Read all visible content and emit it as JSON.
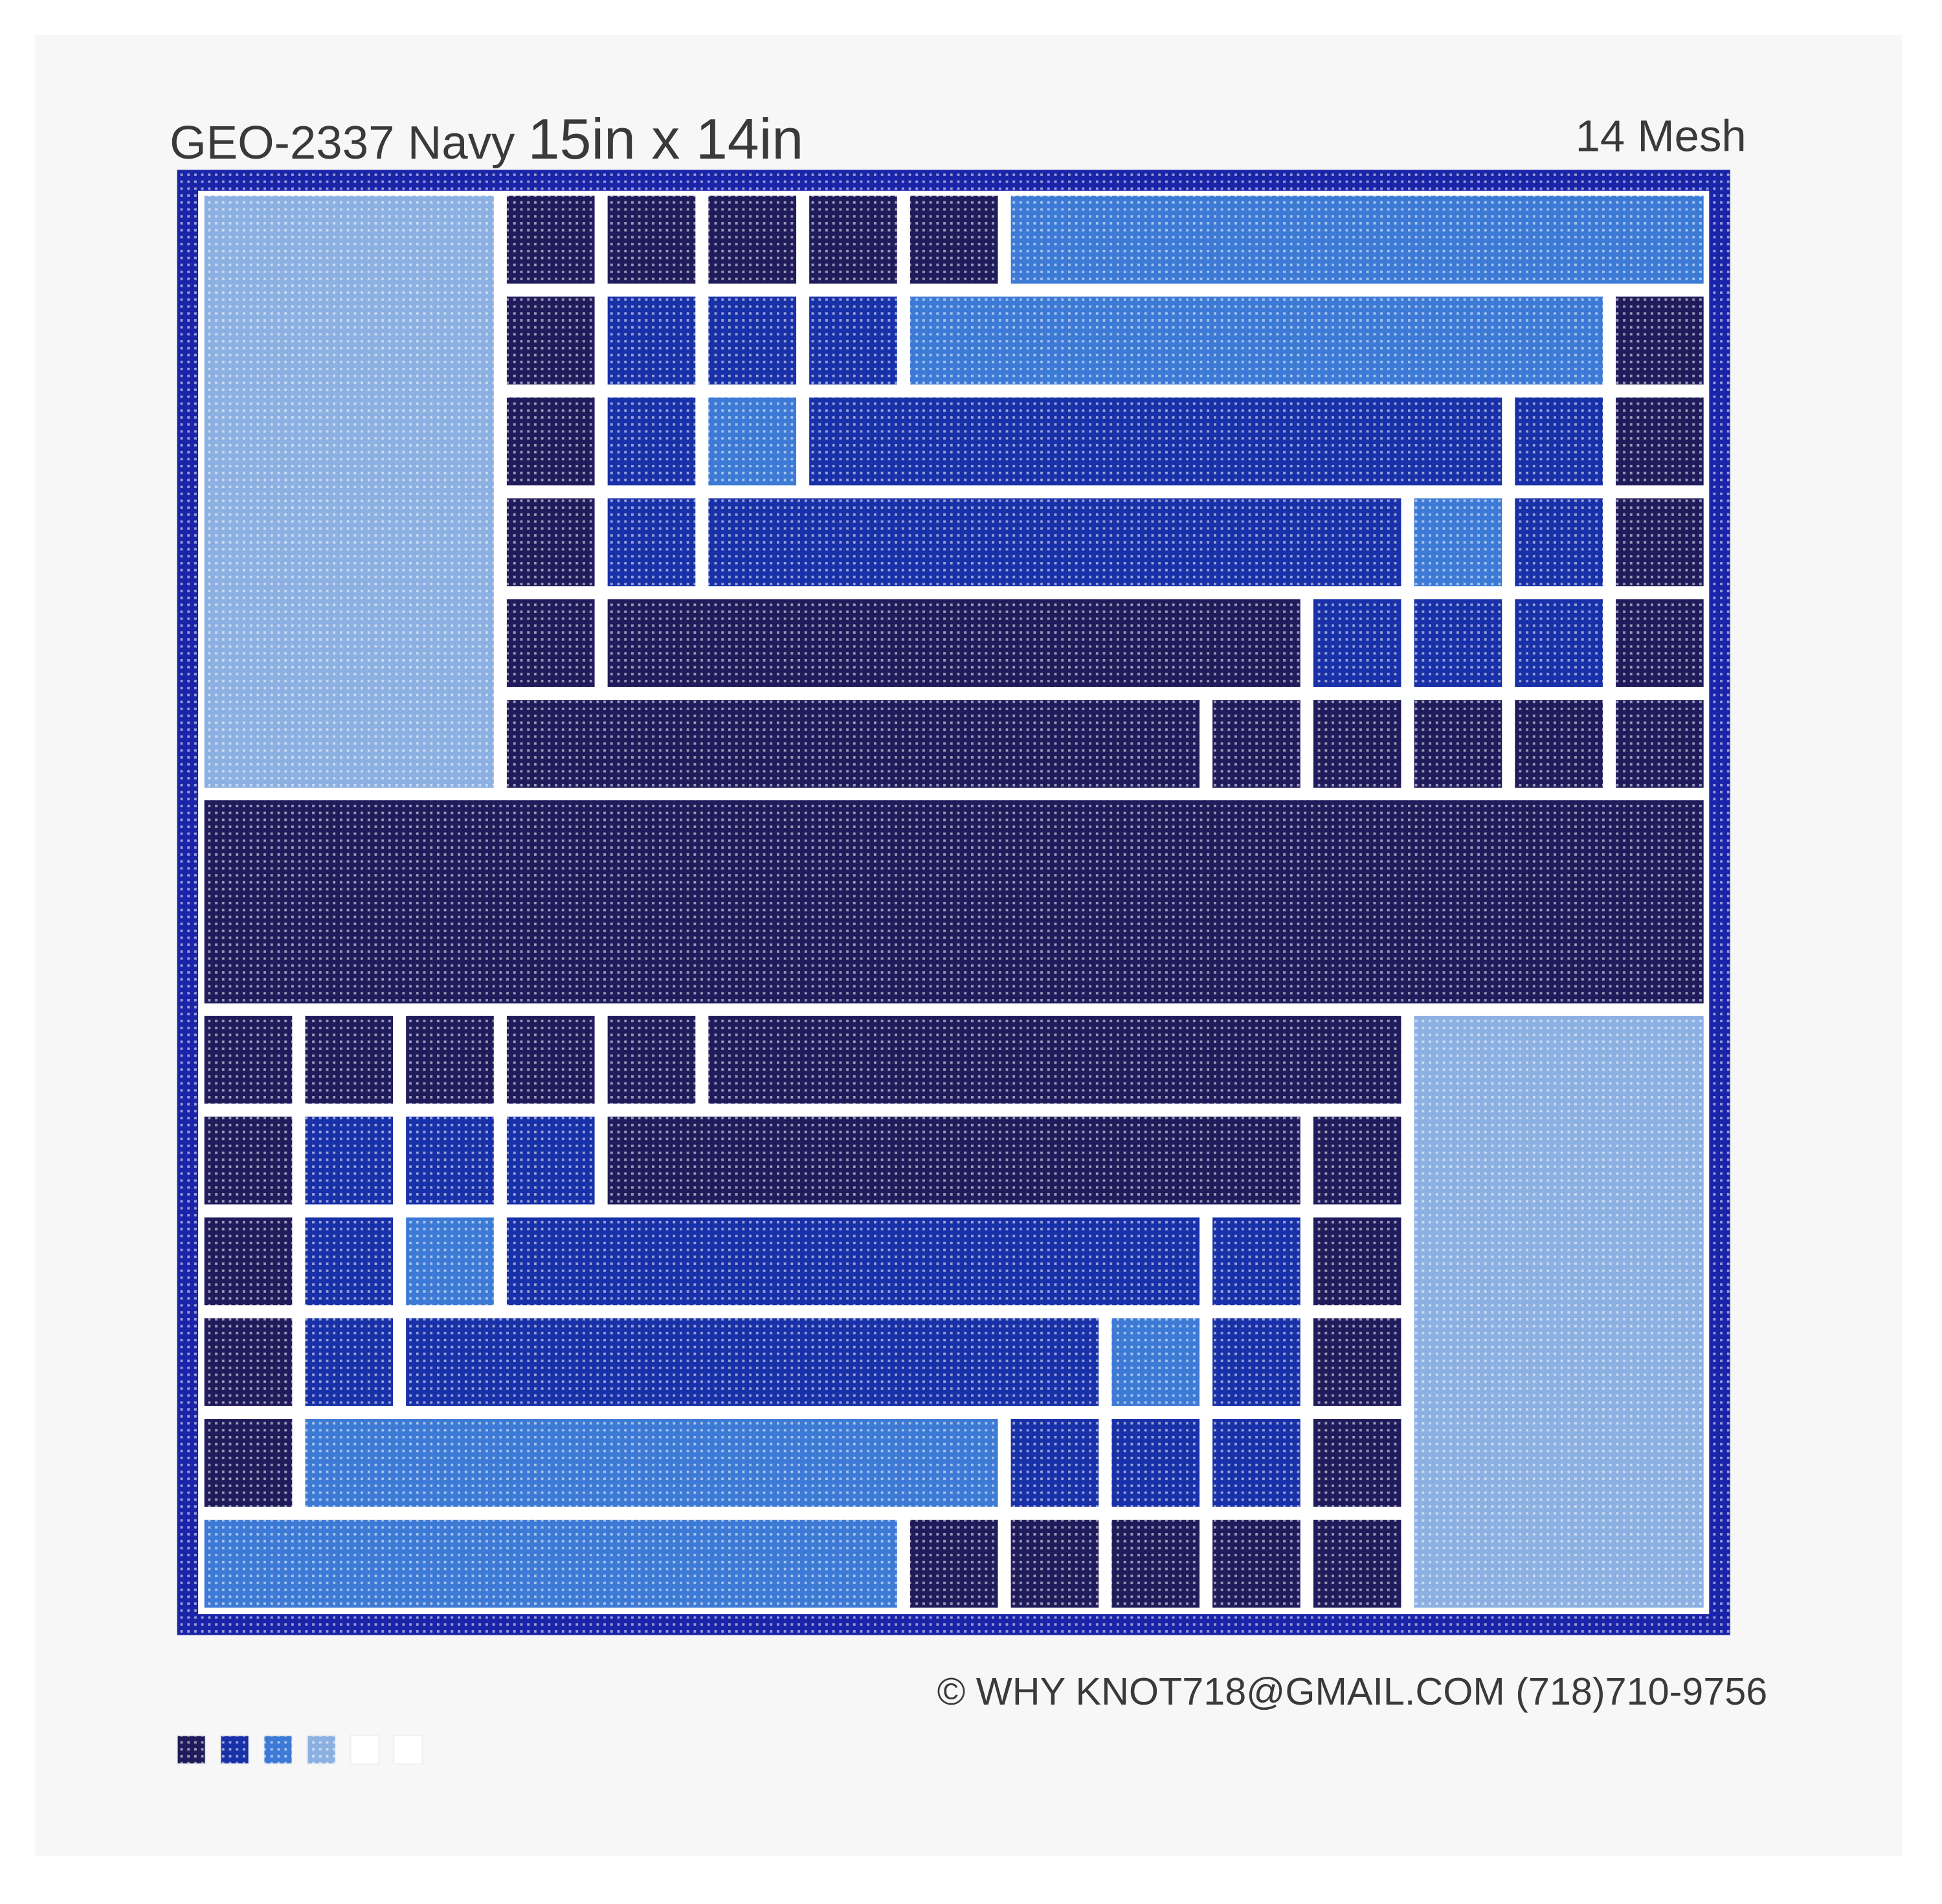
{
  "header": {
    "title": "GEO-2337 Navy",
    "size": "15in x 14in",
    "mesh": "14 Mesh"
  },
  "footer": {
    "copyright": "© WHY KNOT718@GMAIL.COM (718)710-9756"
  }
}
